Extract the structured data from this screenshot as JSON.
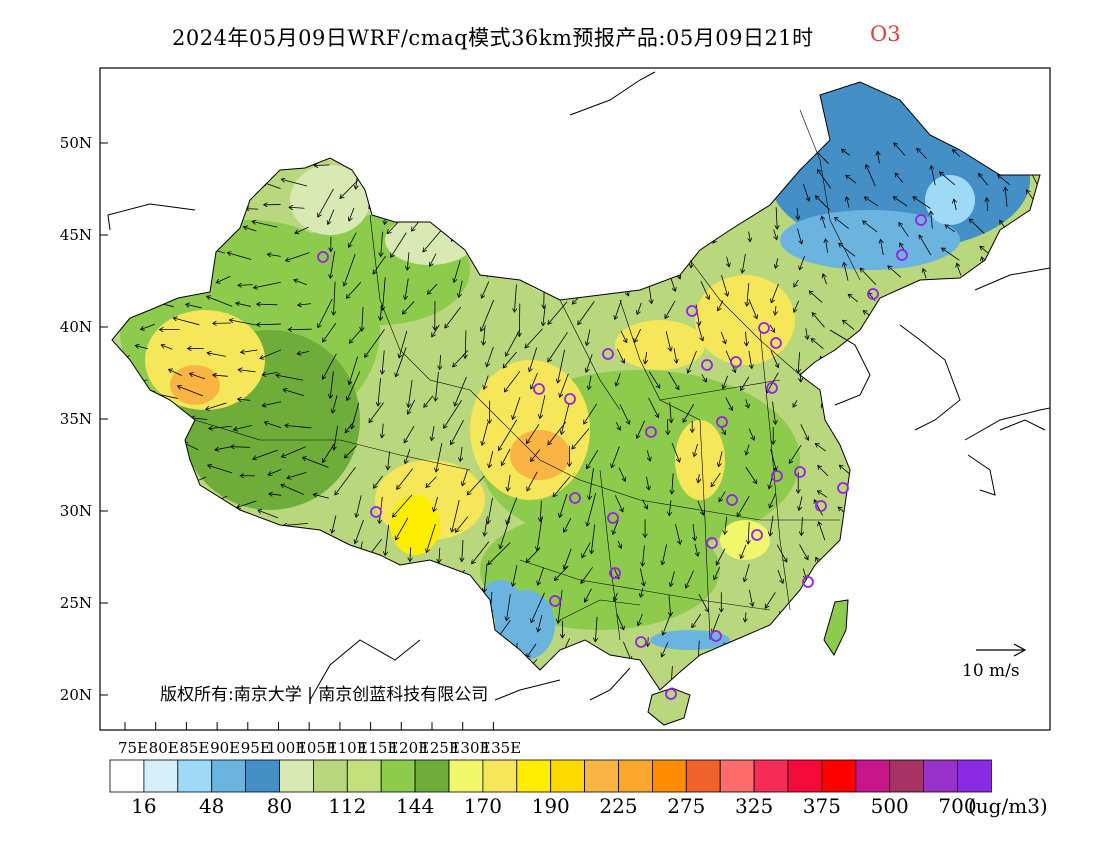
{
  "title": {
    "main": "2024年05月09日WRF/cmaq模式36km预报产品:05月09日21时",
    "variable": "O3",
    "variable_color": "#e83a3a"
  },
  "map": {
    "lon_ticks": [
      "75E",
      "80E",
      "85E",
      "90E",
      "95E",
      "100E",
      "105E",
      "110E",
      "115E",
      "120E",
      "125E",
      "130E",
      "135E"
    ],
    "lat_ticks": [
      "50N",
      "45N",
      "40N",
      "35N",
      "30N",
      "25N",
      "20N"
    ],
    "copyright": "版权所有:南京大学 | 南京创蓝科技有限公司",
    "wind_scale_label": "10 m/s",
    "station_marker_color": "#9b1fe8"
  },
  "colorbar": {
    "colors": [
      "#ffffff",
      "#d6f0fb",
      "#9ed9f5",
      "#6bb4e0",
      "#448fc6",
      "#d9e9b4",
      "#b9d77c",
      "#c4e07c",
      "#8ccb4c",
      "#6ead3a",
      "#f2f86c",
      "#f5e65a",
      "#ffee00",
      "#ffd900",
      "#f9b443",
      "#fba72e",
      "#ff8c00",
      "#f0622c",
      "#ff6a6a",
      "#f52c55",
      "#f50a3c",
      "#ff0000",
      "#c8168a",
      "#a63364",
      "#9832c8",
      "#8a2be2"
    ],
    "labels": [
      "16",
      "48",
      "80",
      "112",
      "144",
      "170",
      "190",
      "225",
      "275",
      "325",
      "375",
      "500",
      "700"
    ],
    "units": "(ug/m3)"
  }
}
